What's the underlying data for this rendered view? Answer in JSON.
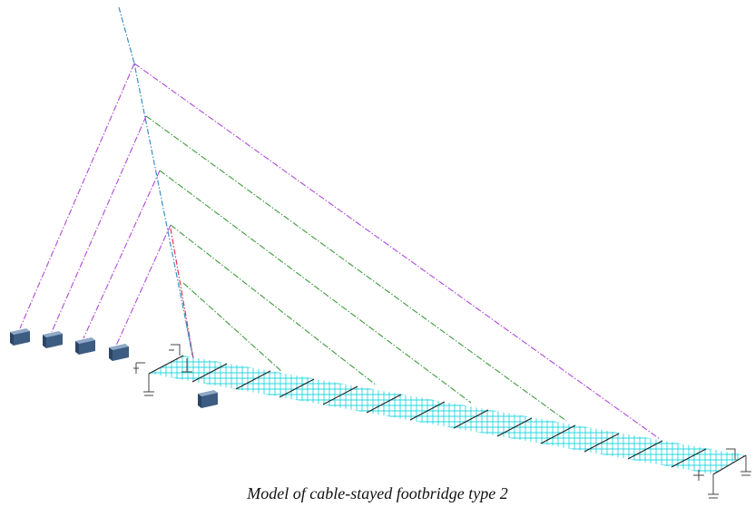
{
  "caption": "Model of cable-stayed footbridge type 2",
  "colors": {
    "pylon": "#3a8fc9",
    "backstay_cable": "#b04ad6",
    "main_cable": "#3f9a3f",
    "deck_edge": "#e0365a",
    "deck_mesh": "#27d7e0",
    "deck_rib": "#222222",
    "anchor_block": "#3d5c82",
    "support": "#444444"
  },
  "icons": {
    "anchor_block": "3d-block-icon",
    "support": "bearing-support-icon"
  }
}
